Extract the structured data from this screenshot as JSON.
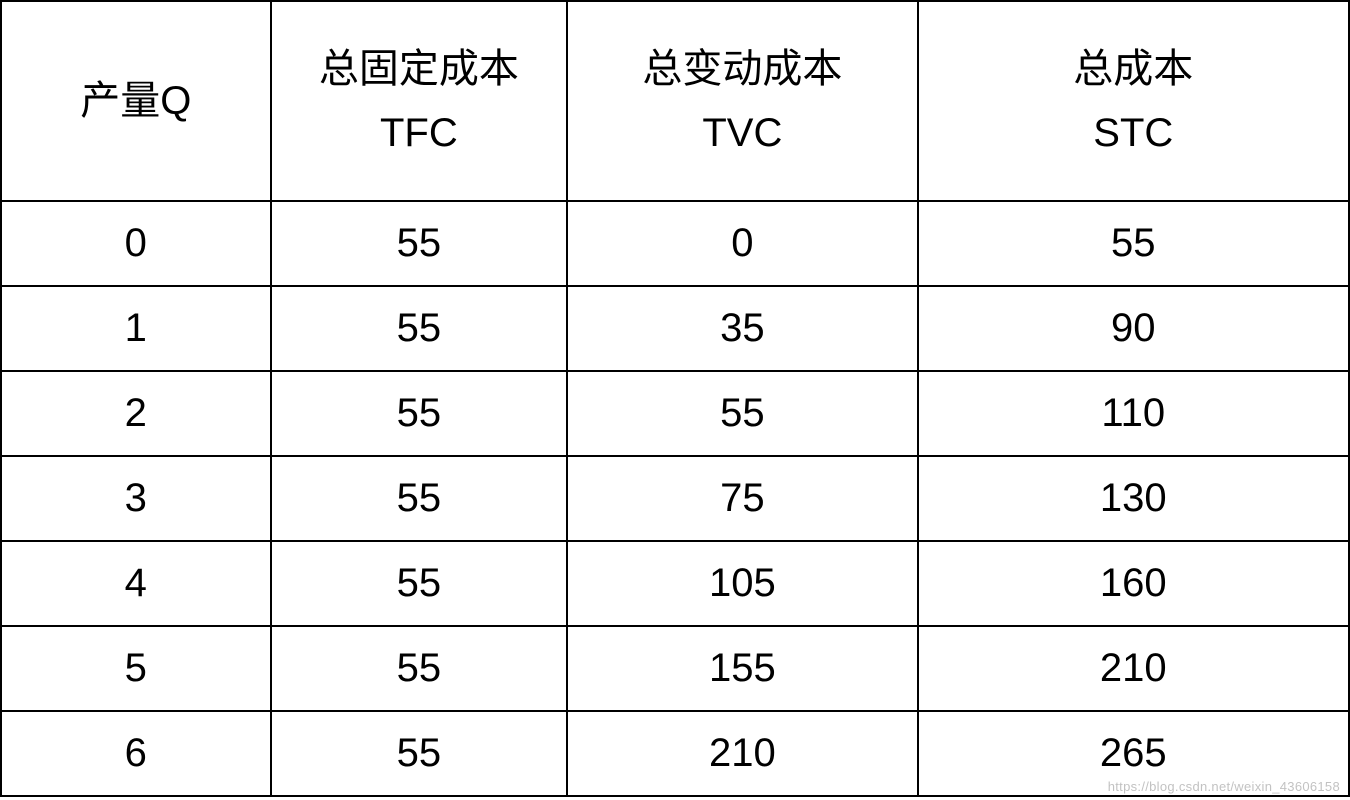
{
  "table": {
    "type": "table",
    "border_color": "#000000",
    "border_width": 2,
    "background_color": "#ffffff",
    "text_color": "#000000",
    "header_fontsize": 40,
    "cell_fontsize": 40,
    "header_row_height": 200,
    "data_row_height": 85,
    "columns": [
      {
        "key": "q",
        "line1": "产量Q",
        "line2": "",
        "width_pct": 20
      },
      {
        "key": "tfc",
        "line1": "总固定成本",
        "line2": "TFC",
        "width_pct": 22
      },
      {
        "key": "tvc",
        "line1": "总变动成本",
        "line2": "TVC",
        "width_pct": 26
      },
      {
        "key": "stc",
        "line1": "总成本",
        "line2": "STC",
        "width_pct": 32
      }
    ],
    "rows": [
      {
        "q": "0",
        "tfc": "55",
        "tvc": "0",
        "stc": "55"
      },
      {
        "q": "1",
        "tfc": "55",
        "tvc": "35",
        "stc": "90"
      },
      {
        "q": "2",
        "tfc": "55",
        "tvc": "55",
        "stc": "110"
      },
      {
        "q": "3",
        "tfc": "55",
        "tvc": "75",
        "stc": "130"
      },
      {
        "q": "4",
        "tfc": "55",
        "tvc": "105",
        "stc": "160"
      },
      {
        "q": "5",
        "tfc": "55",
        "tvc": "155",
        "stc": "210"
      },
      {
        "q": "6",
        "tfc": "55",
        "tvc": "210",
        "stc": "265"
      }
    ]
  },
  "watermark": {
    "text": "https://blog.csdn.net/weixin_43606158",
    "color": "rgba(120,120,120,0.45)",
    "fontsize": 13
  }
}
